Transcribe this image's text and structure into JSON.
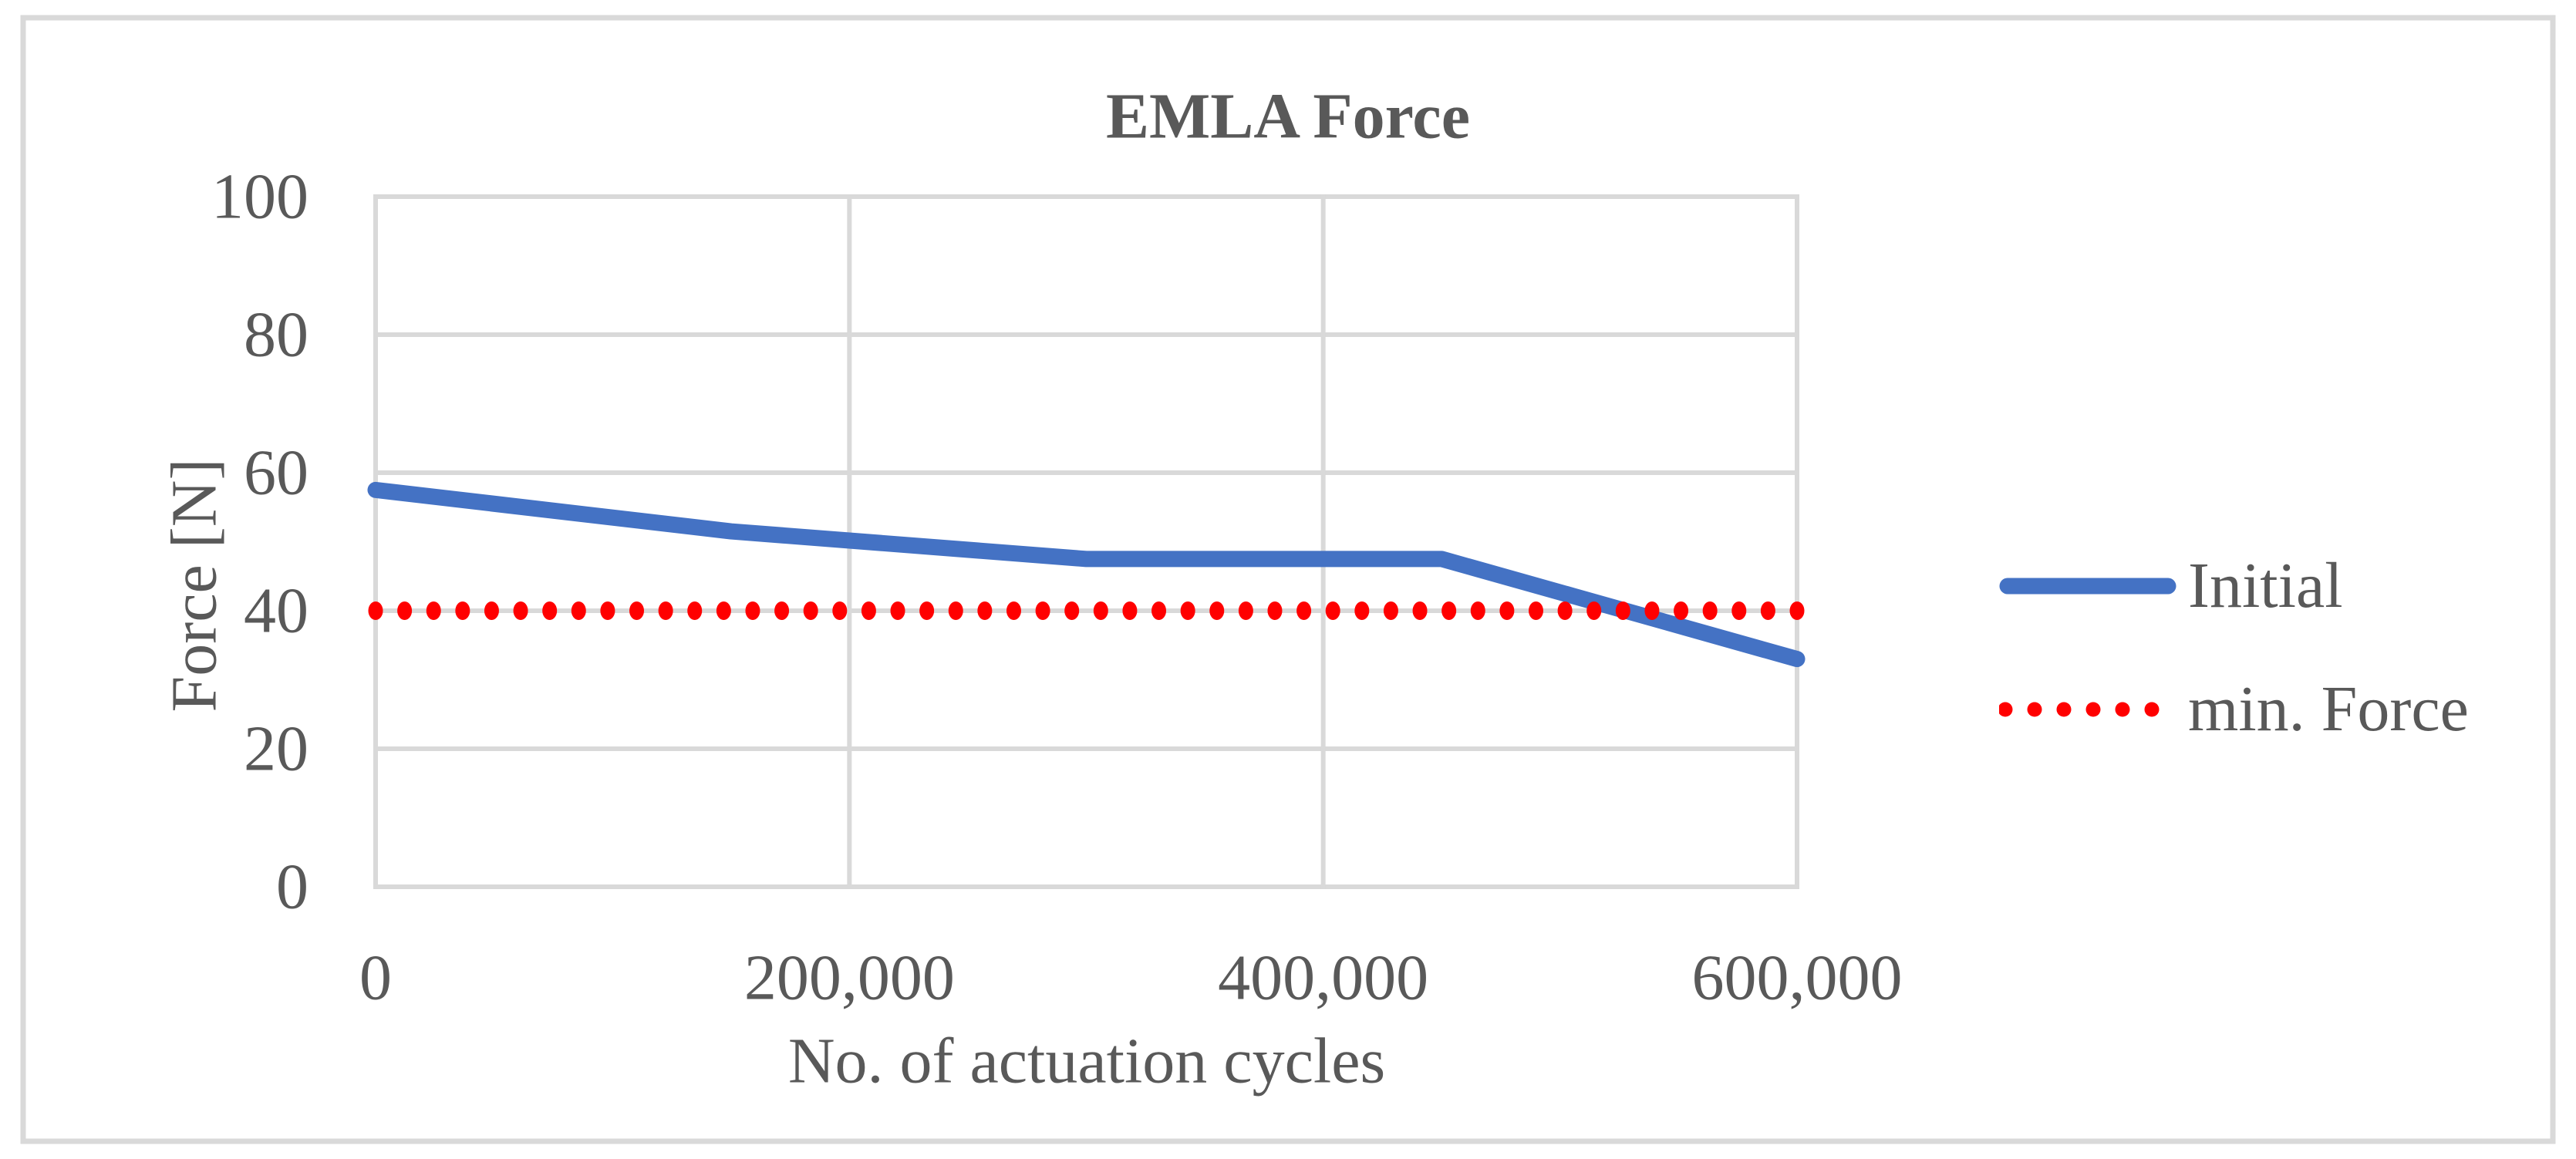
{
  "chart_data": {
    "type": "line",
    "title": "EMLA Force",
    "xlabel": "No. of actuation cycles",
    "ylabel": "Force [N]",
    "xlim": [
      0,
      600000
    ],
    "ylim": [
      0,
      100
    ],
    "grid": true,
    "legend_position": "right-middle",
    "x_ticks": {
      "values": [
        0,
        200000,
        400000,
        600000
      ],
      "labels": [
        "0",
        "200,000",
        "400,000",
        "600,000"
      ]
    },
    "y_ticks": {
      "values": [
        0,
        20,
        40,
        60,
        80,
        100
      ],
      "labels": [
        "0",
        "20",
        "40",
        "60",
        "80",
        "100"
      ]
    },
    "series": [
      {
        "name": "Initial",
        "style": "solid",
        "color": "#4472C4",
        "x": [
          0,
          150000,
          300000,
          450000,
          600000
        ],
        "y": [
          57.5,
          51.5,
          47.5,
          47.5,
          33
        ]
      },
      {
        "name": "min. Force",
        "style": "dotted",
        "color": "#FF0000",
        "x": [
          0,
          600000
        ],
        "y": [
          40,
          40
        ]
      }
    ]
  },
  "colors": {
    "grid": "#D9D9D9",
    "border": "#D9D9D9",
    "text": "#595959",
    "background": "#FFFFFF"
  }
}
